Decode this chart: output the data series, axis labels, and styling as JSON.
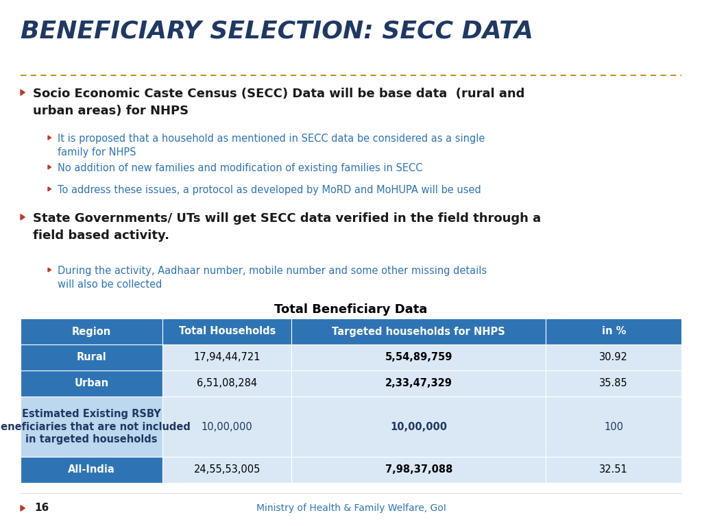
{
  "title": "BENEFICIARY SELECTION: SECC DATA",
  "title_color": "#1F3864",
  "title_fontsize": 26,
  "separator_color": "#A0522D",
  "bullet1_text": "Socio Economic Caste Census (SECC) Data will be base data  (rural and\nurban areas) for NHPS",
  "bullet1_color": "#1a1a1a",
  "sub_bullets1": [
    "It is proposed that a household as mentioned in SECC data be considered as a single\nfamily for NHPS",
    "No addition of new families and modification of existing families in SECC",
    "To address these issues, a protocol as developed by MoRD and MoHUPA will be used"
  ],
  "sub_bullets1_color": "#2E74B5",
  "bullet2_text": "State Governments/ UTs will get SECC data verified in the field through a\nfield based activity.",
  "bullet2_color": "#1a1a1a",
  "sub_bullets2": [
    "During the activity, Aadhaar number, mobile number and some other missing details\nwill also be collected"
  ],
  "sub_bullets2_color": "#2E74B5",
  "table_title": "Total Beneficiary Data",
  "table_header_bg": "#2E74B5",
  "table_header_color": "#FFFFFF",
  "table_row1_label_bg": "#2E74B5",
  "table_row1_label_color": "#FFFFFF",
  "table_row1_data_bg": "#DAE8F5",
  "table_row1_data_color": "#000000",
  "table_row2_label_bg": "#2E74B5",
  "table_row2_label_color": "#FFFFFF",
  "table_row2_data_bg": "#DAE8F5",
  "table_row2_data_color": "#000000",
  "table_row3_label_bg": "#BDD7EE",
  "table_row3_label_color": "#1F3864",
  "table_row3_data_bg": "#DAE8F5",
  "table_row3_data_color": "#1F3864",
  "table_row4_label_bg": "#2E74B5",
  "table_row4_label_color": "#FFFFFF",
  "table_row4_data_bg": "#DAE8F5",
  "table_row4_data_color": "#000000",
  "table_columns": [
    "Region",
    "Total Households",
    "Targeted households for NHPS",
    "in %"
  ],
  "table_rows": [
    [
      "Rural",
      "17,94,44,721",
      "5,54,89,759",
      "30.92"
    ],
    [
      "Urban",
      "6,51,08,284",
      "2,33,47,329",
      "35.85"
    ],
    [
      "Estimated Existing RSBY\nBeneficiaries that are not included\nin targeted households",
      "10,00,000",
      "10,00,000",
      "100"
    ],
    [
      "All-India",
      "24,55,53,005",
      "7,98,37,088",
      "32.51"
    ]
  ],
  "footer_text": "Ministry of Health & Family Welfare, GoI",
  "footer_color": "#2E74B5",
  "page_number": "16",
  "bg_color": "#FFFFFF",
  "bullet_color": "#C0392B",
  "sub_bullet_color": "#C0392B"
}
